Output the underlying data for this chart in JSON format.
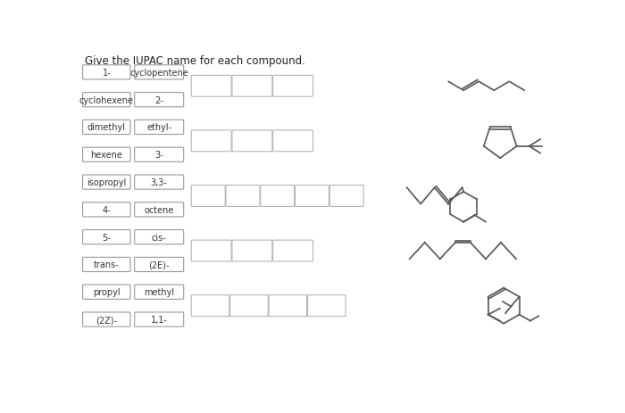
{
  "title": "Give the IUPAC name for each compound.",
  "word_bank_col1": [
    "1-",
    "cyclohexene",
    "dimethyl",
    "hexene",
    "isopropyl",
    "4-",
    "5-",
    "trans-",
    "propyl",
    "(2Z)-"
  ],
  "word_bank_col2": [
    "cyclopentene",
    "2-",
    "ethyl-",
    "3-",
    "3,3-",
    "octene",
    "cis-",
    "(2E)-",
    "methyl",
    "1,1-"
  ],
  "bg_color": "#ffffff",
  "gray": "#555555",
  "edge_color": "#999999",
  "lw": 1.2
}
